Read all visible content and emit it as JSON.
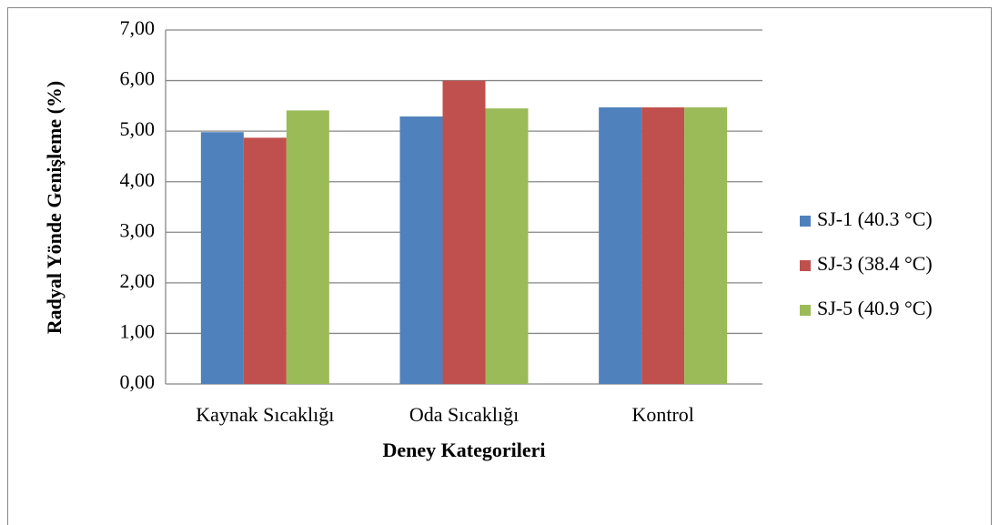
{
  "chart_data": {
    "type": "bar",
    "x_label": "Deney Kategorileri",
    "y_label": "Radyal Yönde Genişleme (%)",
    "categories": [
      "Kaynak Sıcaklığı",
      "Oda Sıcaklığı",
      "Kontrol"
    ],
    "series": [
      {
        "name": "SJ-1 (40.3 °C)",
        "color": "#4f81bd",
        "values": [
          4.98,
          5.29,
          5.47
        ]
      },
      {
        "name": "SJ-3 (38.4 °C)",
        "color": "#c0504d",
        "values": [
          4.87,
          6.0,
          5.47
        ]
      },
      {
        "name": "SJ-5 (40.9 °C)",
        "color": "#9bbb59",
        "values": [
          5.41,
          5.45,
          5.47
        ]
      }
    ],
    "ylim": [
      0,
      7
    ],
    "yticks": [
      {
        "value": 0,
        "label": "0,00"
      },
      {
        "value": 1,
        "label": "1,00"
      },
      {
        "value": 2,
        "label": "2,00"
      },
      {
        "value": 3,
        "label": "3,00"
      },
      {
        "value": 4,
        "label": "4,00"
      },
      {
        "value": 5,
        "label": "5,00"
      },
      {
        "value": 6,
        "label": "6,00"
      },
      {
        "value": 7,
        "label": "7,00"
      }
    ],
    "grid": true,
    "legend": "right"
  }
}
